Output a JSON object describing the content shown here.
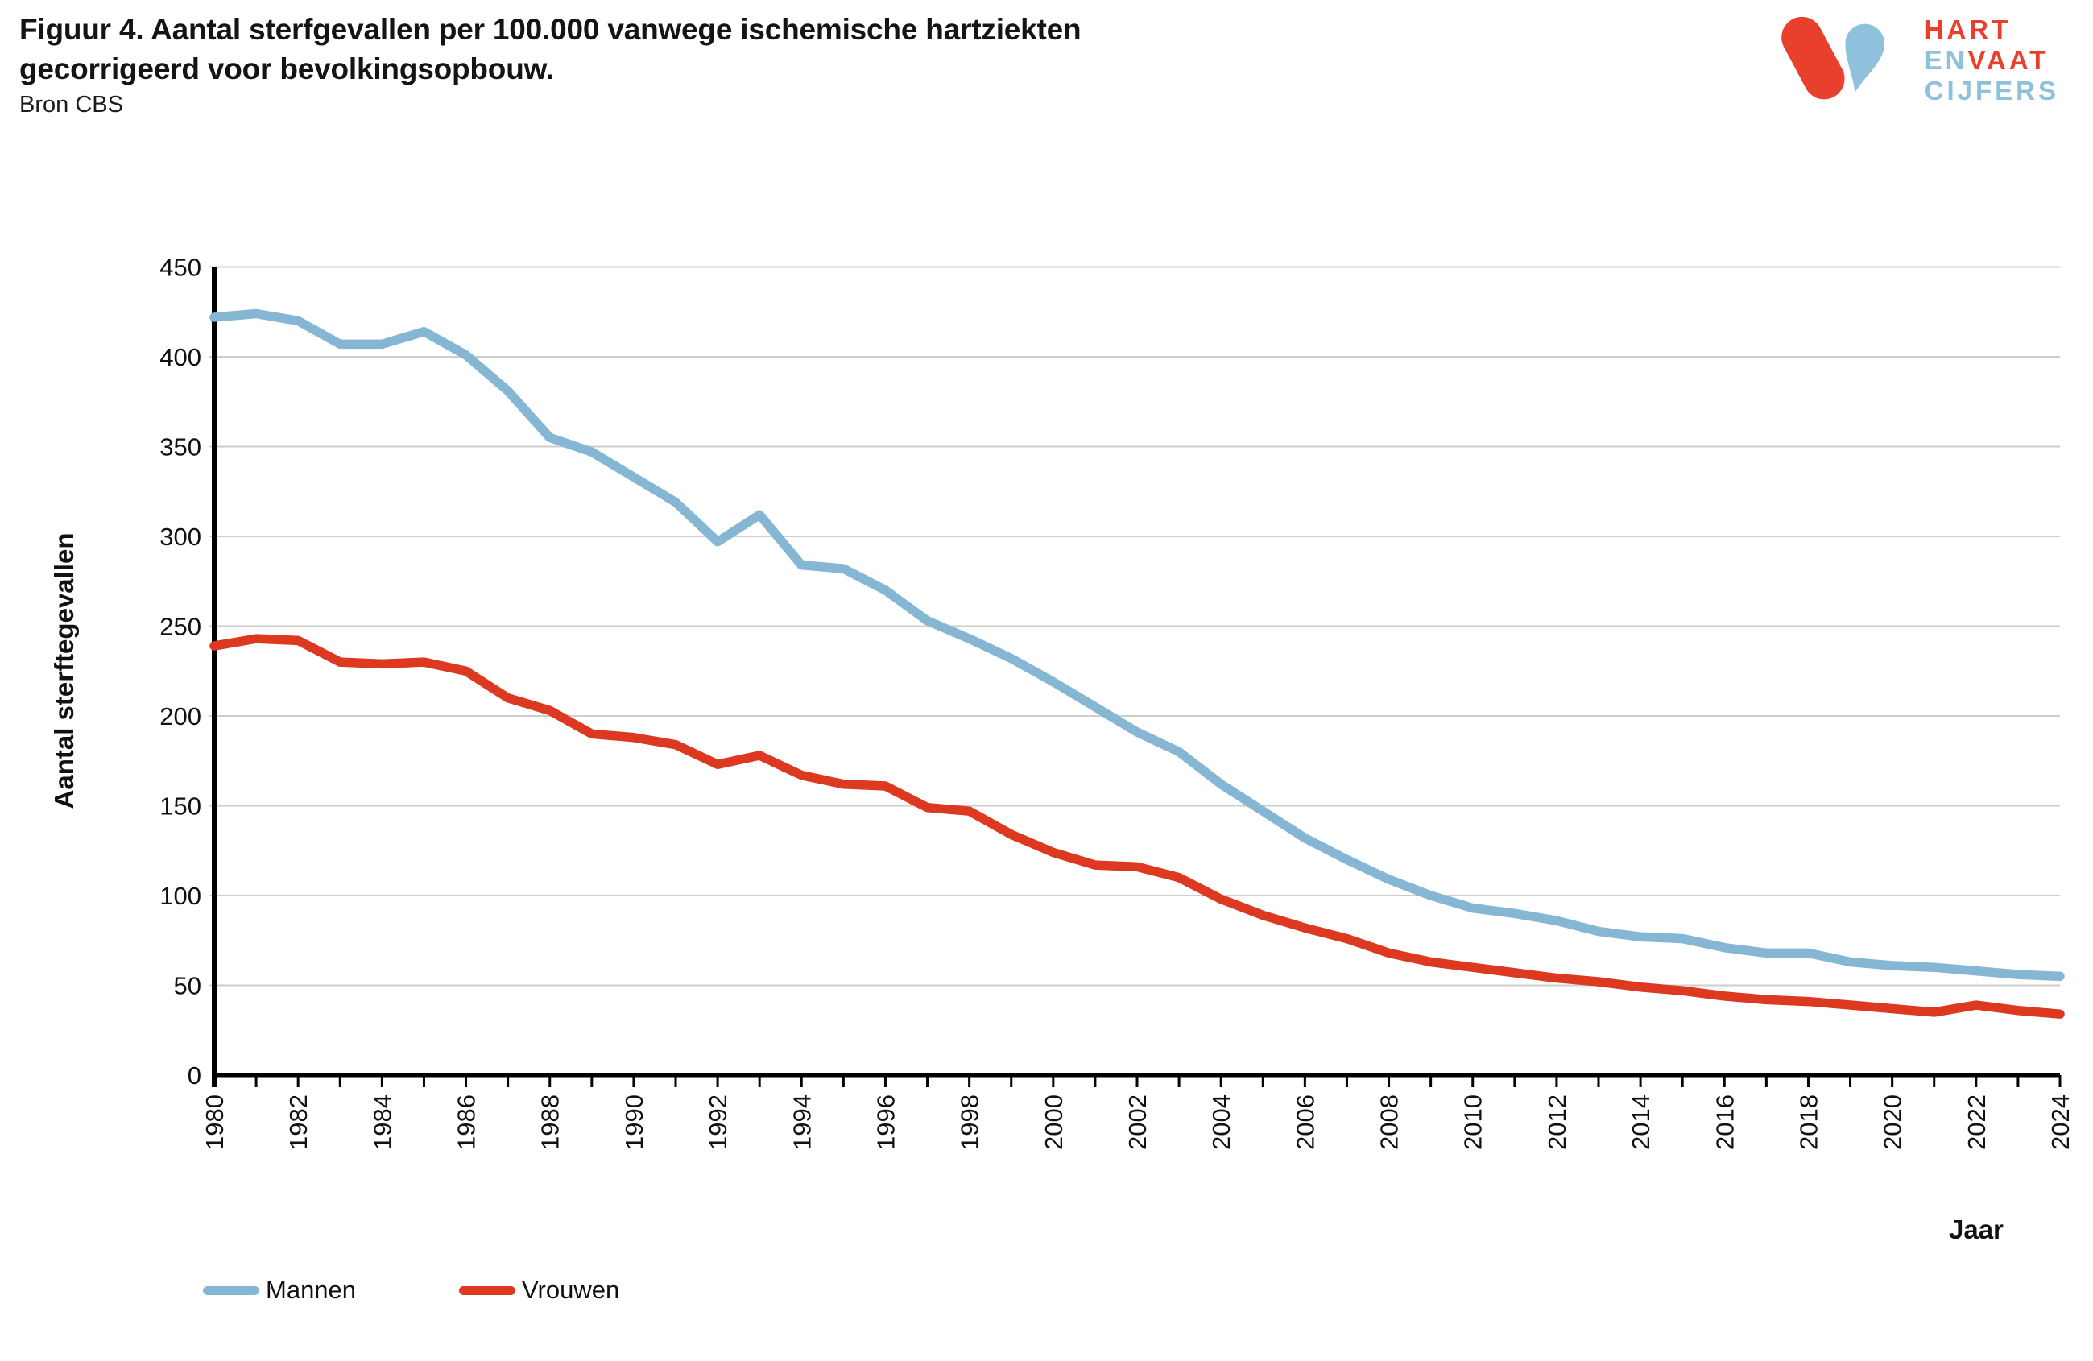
{
  "header": {
    "title": "Figuur 4. Aantal sterfgevallen per 100.000 vanwege ischemische hartziekten gecorrigeerd voor bevolkingsopbouw.",
    "source": "Bron CBS"
  },
  "logo": {
    "word1": "HART",
    "word2a": "EN",
    "word2b": "VAAT",
    "word3": "CIJFERS",
    "red": "#e8402c",
    "blue": "#8fc1dc"
  },
  "chart_data": {
    "type": "line",
    "title": "Figuur 4. Aantal sterfgevallen per 100.000 vanwege ischemische hartziekten gecorrigeerd voor bevolkingsopbouw.",
    "subtitle": "Bron CBS",
    "xlabel": "Jaar",
    "ylabel": "Aantal sterftegevallen",
    "ylim": [
      0,
      450
    ],
    "ytick_step": 50,
    "xtick_label_step": 2,
    "grid": "horizontal",
    "legend_position": "bottom-left",
    "grid_color": "#cdcdcd",
    "axis_color": "#000000",
    "years": [
      1980,
      1981,
      1982,
      1983,
      1984,
      1985,
      1986,
      1987,
      1988,
      1989,
      1990,
      1991,
      1992,
      1993,
      1994,
      1995,
      1996,
      1997,
      1998,
      1999,
      2000,
      2001,
      2002,
      2003,
      2004,
      2005,
      2006,
      2007,
      2008,
      2009,
      2010,
      2011,
      2012,
      2013,
      2014,
      2015,
      2016,
      2017,
      2018,
      2019,
      2020,
      2021,
      2022,
      2023,
      2024
    ],
    "series": [
      {
        "name": "Mannen",
        "color": "#85b7d4",
        "values": [
          422,
          424,
          420,
          407,
          407,
          414,
          401,
          381,
          355,
          347,
          333,
          319,
          297,
          312,
          284,
          282,
          270,
          253,
          243,
          232,
          219,
          205,
          191,
          180,
          162,
          147,
          132,
          120,
          109,
          100,
          93,
          90,
          86,
          80,
          77,
          76,
          71,
          68,
          68,
          63,
          61,
          60,
          58,
          56,
          55
        ]
      },
      {
        "name": "Vrouwen",
        "color": "#dd3820",
        "values": [
          239,
          243,
          242,
          230,
          229,
          230,
          225,
          210,
          203,
          190,
          188,
          184,
          173,
          178,
          167,
          162,
          161,
          149,
          147,
          134,
          124,
          117,
          116,
          110,
          98,
          89,
          82,
          76,
          68,
          63,
          60,
          57,
          54,
          52,
          49,
          47,
          44,
          42,
          41,
          39,
          37,
          35,
          39,
          36,
          34
        ]
      }
    ]
  }
}
